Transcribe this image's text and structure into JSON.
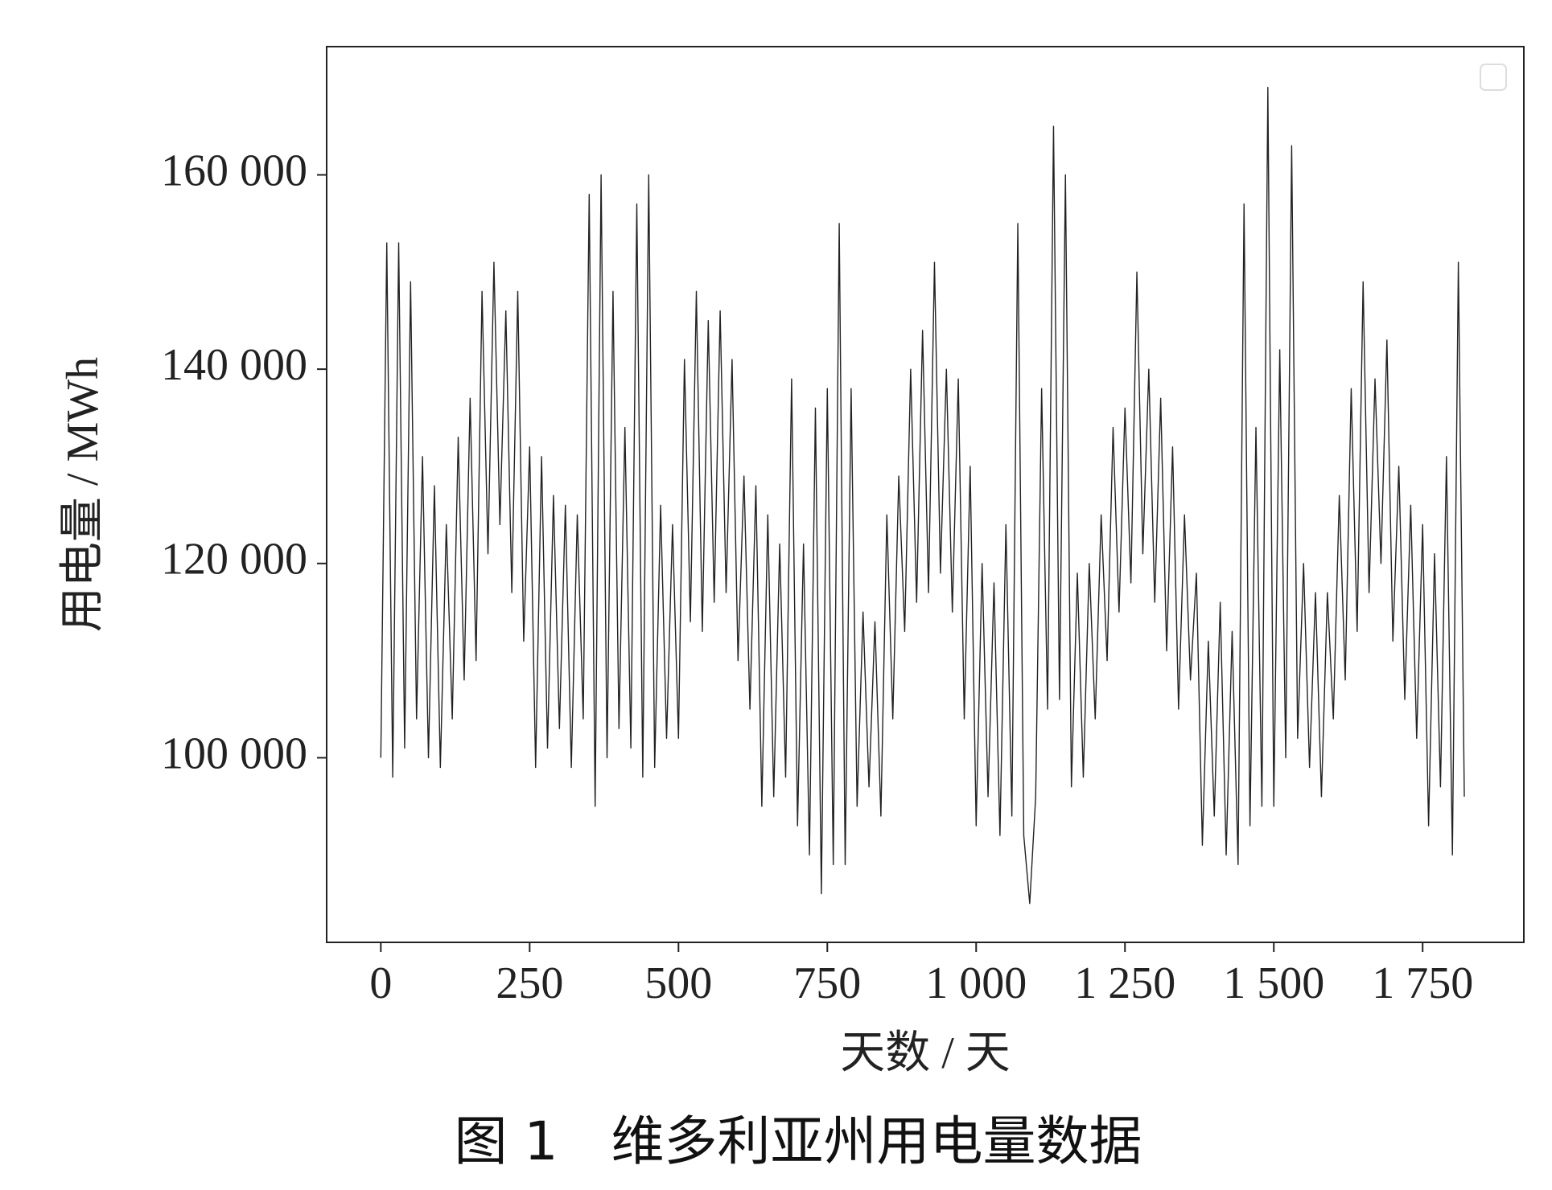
{
  "chart_data": {
    "type": "line",
    "title": "图 1　维多利亚州用电量数据",
    "xlabel": "天数 / 天",
    "ylabel": "用电量 / MWh",
    "xlim": [
      -91,
      1920
    ],
    "ylim": [
      81000,
      173200
    ],
    "xticks": [
      0,
      250,
      500,
      750,
      {
        "value": 1000,
        "label": "1 000"
      },
      {
        "value": 1250,
        "label": "1 250"
      },
      {
        "value": 1500,
        "label": "1 500"
      },
      {
        "value": 1750,
        "label": "1 750"
      }
    ],
    "yticks": [
      {
        "value": 100000,
        "label": "100 000"
      },
      {
        "value": 120000,
        "label": "120 000"
      },
      {
        "value": 140000,
        "label": "140 000"
      },
      {
        "value": 160000,
        "label": "160 000"
      }
    ],
    "grid": false,
    "legend": "upper right",
    "series": [
      {
        "color": "#222222",
        "x": [
          0,
          10,
          20,
          30,
          40,
          50,
          60,
          70,
          80,
          90,
          100,
          110,
          120,
          130,
          140,
          150,
          160,
          170,
          180,
          190,
          200,
          210,
          220,
          230,
          240,
          250,
          260,
          270,
          280,
          290,
          300,
          310,
          320,
          330,
          340,
          350,
          360,
          370,
          380,
          390,
          400,
          410,
          420,
          430,
          440,
          450,
          460,
          470,
          480,
          490,
          500,
          510,
          520,
          530,
          540,
          550,
          560,
          570,
          580,
          590,
          600,
          610,
          620,
          630,
          640,
          650,
          660,
          670,
          680,
          690,
          700,
          710,
          720,
          730,
          740,
          750,
          760,
          770,
          780,
          790,
          800,
          810,
          820,
          830,
          840,
          850,
          860,
          870,
          880,
          890,
          900,
          910,
          920,
          930,
          940,
          950,
          960,
          970,
          980,
          990,
          1000,
          1010,
          1020,
          1030,
          1040,
          1050,
          1060,
          1070,
          1080,
          1090,
          1100,
          1110,
          1120,
          1130,
          1140,
          1150,
          1160,
          1170,
          1180,
          1190,
          1200,
          1210,
          1220,
          1230,
          1240,
          1250,
          1260,
          1270,
          1280,
          1290,
          1300,
          1310,
          1320,
          1330,
          1340,
          1350,
          1360,
          1370,
          1380,
          1390,
          1400,
          1410,
          1420,
          1430,
          1440,
          1450,
          1460,
          1470,
          1480,
          1490,
          1500,
          1510,
          1520,
          1530,
          1540,
          1550,
          1560,
          1570,
          1580,
          1590,
          1600,
          1610,
          1620,
          1630,
          1640,
          1650,
          1660,
          1670,
          1680,
          1690,
          1700,
          1710,
          1720,
          1730,
          1740,
          1750,
          1760,
          1770,
          1780,
          1790,
          1800,
          1810,
          1820
        ],
        "values": [
          100000,
          153000,
          98000,
          153000,
          101000,
          149000,
          104000,
          131000,
          100000,
          128000,
          99000,
          124000,
          104000,
          133000,
          108000,
          137000,
          110000,
          148000,
          121000,
          151000,
          124000,
          146000,
          117000,
          148000,
          112000,
          132000,
          99000,
          131000,
          101000,
          127000,
          103000,
          126000,
          99000,
          125000,
          104000,
          158000,
          95000,
          160000,
          100000,
          148000,
          103000,
          134000,
          101000,
          157000,
          98000,
          160000,
          99000,
          126000,
          102000,
          124000,
          102000,
          141000,
          114000,
          148000,
          113000,
          145000,
          116000,
          146000,
          117000,
          141000,
          110000,
          129000,
          105000,
          128000,
          95000,
          125000,
          96000,
          122000,
          98000,
          139000,
          93000,
          122000,
          90000,
          136000,
          86000,
          138000,
          89000,
          155000,
          89000,
          138000,
          95000,
          115000,
          97000,
          114000,
          94000,
          125000,
          104000,
          129000,
          113000,
          140000,
          116000,
          144000,
          117000,
          151000,
          119000,
          140000,
          115000,
          139000,
          104000,
          130000,
          93000,
          120000,
          96000,
          118000,
          92000,
          124000,
          94000,
          155000,
          92000,
          85000,
          96000,
          138000,
          105000,
          165000,
          106000,
          160000,
          97000,
          119000,
          98000,
          120000,
          104000,
          125000,
          110000,
          134000,
          115000,
          136000,
          118000,
          150000,
          121000,
          140000,
          116000,
          137000,
          111000,
          132000,
          105000,
          125000,
          108000,
          119000,
          91000,
          112000,
          94000,
          116000,
          90000,
          113000,
          89000,
          157000,
          93000,
          134000,
          95000,
          169000,
          95000,
          142000,
          100000,
          163000,
          102000,
          120000,
          99000,
          117000,
          96000,
          117000,
          104000,
          127000,
          108000,
          138000,
          113000,
          149000,
          117000,
          139000,
          120000,
          143000,
          112000,
          130000,
          106000,
          126000,
          102000,
          124000,
          93000,
          121000,
          97000,
          131000,
          90000,
          151000,
          96000
        ]
      }
    ]
  }
}
